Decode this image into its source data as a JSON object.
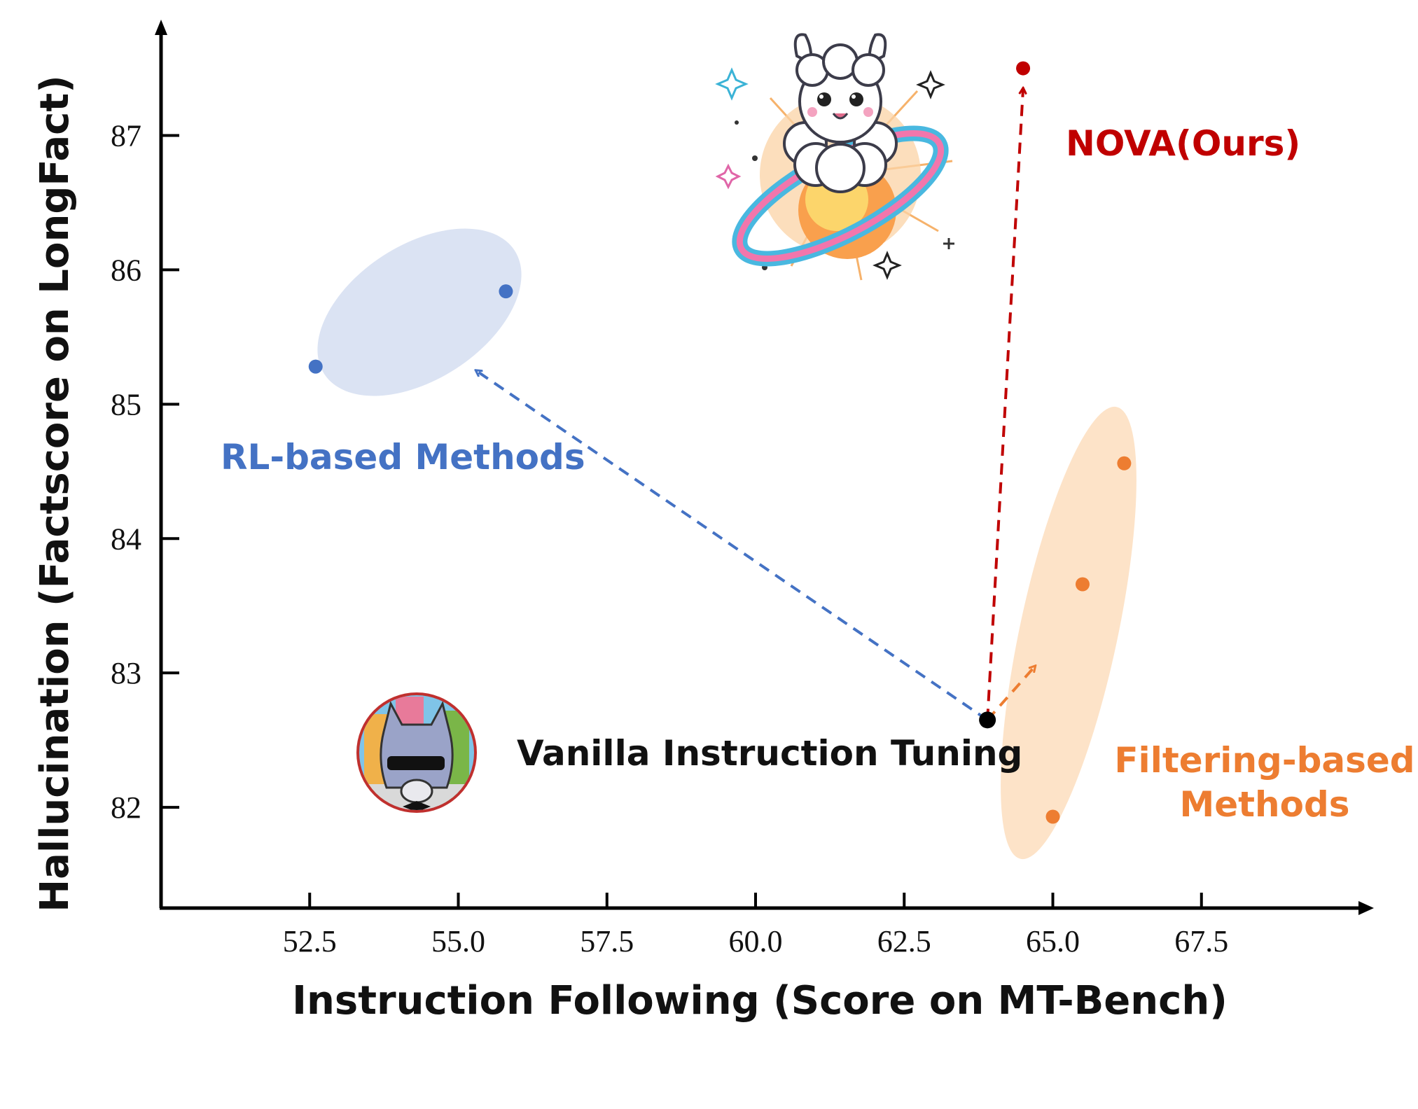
{
  "chart_data": {
    "type": "scatter",
    "title": "",
    "xlabel": "Instruction Following (Score on MT-Bench)",
    "ylabel": "Hallucination (Factscore on LongFact)",
    "xlim": [
      50.0,
      70.2
    ],
    "ylim": [
      81.25,
      87.8
    ],
    "xticks": [
      52.5,
      55.0,
      57.5,
      60.0,
      62.5,
      65.0,
      67.5
    ],
    "xtick_labels": [
      "52.5",
      "55.0",
      "57.5",
      "60.0",
      "62.5",
      "65.0",
      "67.5"
    ],
    "yticks": [
      82,
      83,
      84,
      85,
      86,
      87
    ],
    "ytick_labels": [
      "82",
      "83",
      "84",
      "85",
      "86",
      "87"
    ],
    "grid": false,
    "series": [
      {
        "name": "Vanilla Instruction Tuning",
        "color": "#000000",
        "points": [
          {
            "x": 63.9,
            "y": 82.65
          }
        ]
      },
      {
        "name": "RL-based Methods",
        "color": "#4472c4",
        "points": [
          {
            "x": 52.6,
            "y": 85.28
          },
          {
            "x": 55.8,
            "y": 85.84
          }
        ]
      },
      {
        "name": "Filtering-based Methods",
        "color": "#ed7d31",
        "points": [
          {
            "x": 65.0,
            "y": 81.93
          },
          {
            "x": 65.5,
            "y": 83.66
          },
          {
            "x": 66.2,
            "y": 84.56
          }
        ]
      },
      {
        "name": "NOVA(Ours)",
        "color": "#c00000",
        "points": [
          {
            "x": 64.5,
            "y": 87.5
          }
        ]
      }
    ],
    "annotations": [
      {
        "text": "Vanilla Instruction Tuning",
        "color": "#000000"
      },
      {
        "text": "RL-based Methods",
        "color": "#4472c4"
      },
      {
        "text": "Filtering-based",
        "color": "#ed7d31"
      },
      {
        "text": "Methods",
        "color": "#ed7d31"
      },
      {
        "text": "NOVA(Ours)",
        "color": "#c00000"
      }
    ],
    "arrows": [
      {
        "from": [
          63.9,
          82.65
        ],
        "to": [
          55.3,
          85.25
        ],
        "color": "#4472c4",
        "style": "dashed"
      },
      {
        "from": [
          63.9,
          82.65
        ],
        "to": [
          64.7,
          83.05
        ],
        "color": "#ed7d31",
        "style": "dashed"
      },
      {
        "from": [
          63.9,
          82.65
        ],
        "to": [
          64.5,
          87.35
        ],
        "color": "#c00000",
        "style": "dashed"
      }
    ],
    "regions": [
      {
        "name": "RL-based Methods",
        "color": "#dbe3f3",
        "center": [
          54.2,
          85.56
        ]
      },
      {
        "name": "Filtering-based Methods",
        "color": "#fde3c8",
        "center": [
          65.6,
          83.2
        ]
      }
    ]
  },
  "illustrations": {
    "vanilla_icon": "llama-with-sunglasses-avatar",
    "nova_icon": "fluffy-llama-on-planet-illustration"
  }
}
